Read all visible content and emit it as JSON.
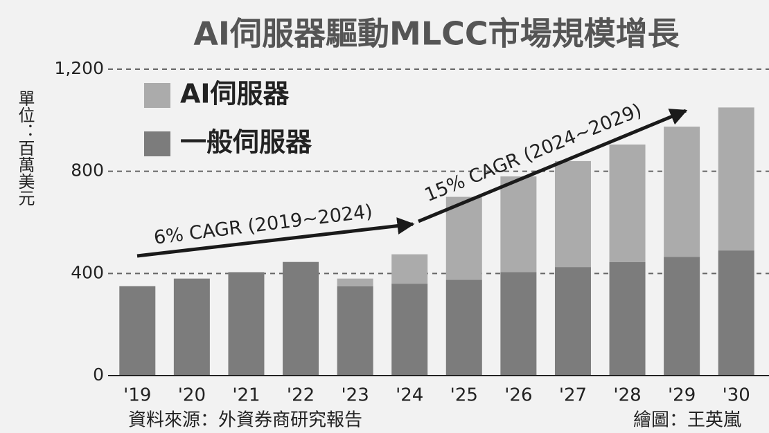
{
  "chart_data": {
    "type": "stacked_bar",
    "title": "AI伺服器驅動MLCC市場規模增長",
    "y_axis_label": "單位：百萬美元",
    "categories": [
      "'19",
      "'20",
      "'21",
      "'22",
      "'23",
      "'24",
      "'25",
      "'26",
      "'27",
      "'28",
      "'29",
      "'30"
    ],
    "series": [
      {
        "name": "一般伺服器",
        "color": "#7c7c7c",
        "values": [
          350,
          380,
          405,
          445,
          350,
          360,
          375,
          405,
          425,
          445,
          465,
          490
        ]
      },
      {
        "name": "AI伺服器",
        "color": "#ababab",
        "values": [
          0,
          0,
          0,
          0,
          30,
          115,
          325,
          375,
          415,
          460,
          510,
          560
        ]
      }
    ],
    "ylim": [
      0,
      1200
    ],
    "yticks": [
      0,
      400,
      800,
      {
        "value": 1200,
        "label": "1,200"
      }
    ],
    "grid": true,
    "annotations": [
      "6% CAGR (2019~2024)",
      "15% CAGR (2024~2029)"
    ],
    "source": "資料來源：外資券商研究報告",
    "credit": "繪圖：王英嵐"
  }
}
